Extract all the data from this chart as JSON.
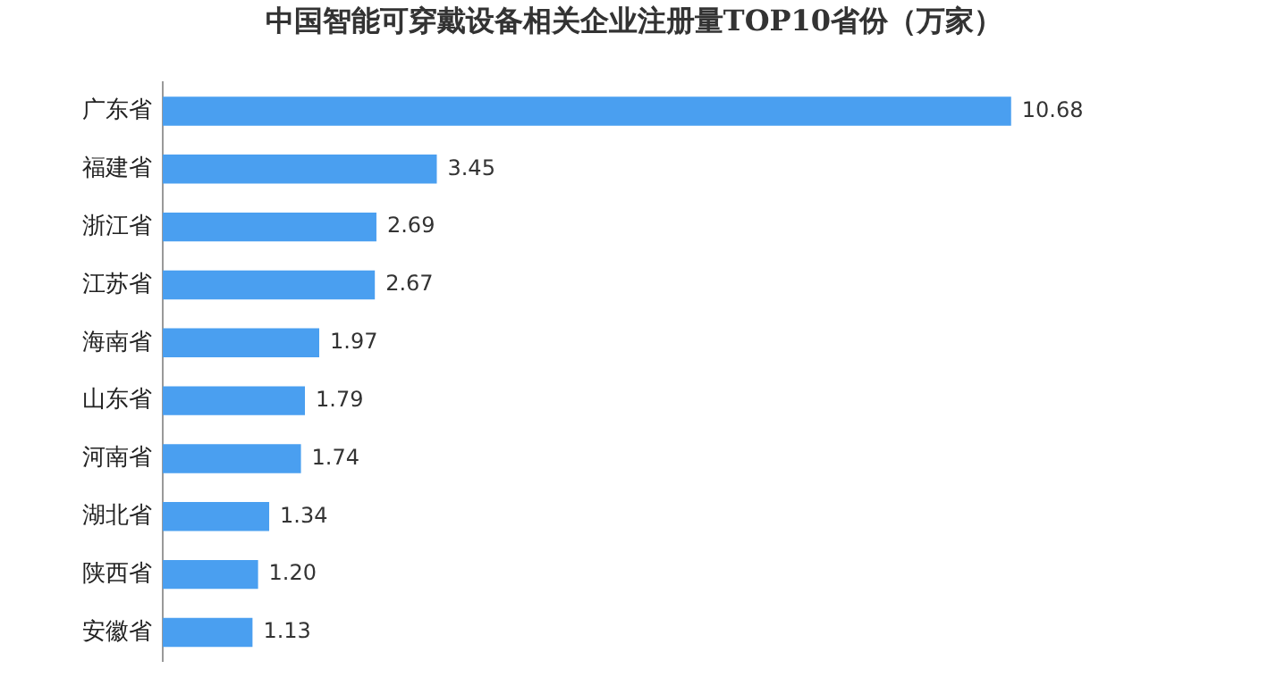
{
  "chart_data": {
    "type": "bar",
    "orientation": "horizontal",
    "title": "中国智能可穿戴设备相关企业注册量TOP10省份（万家）",
    "categories": [
      "广东省",
      "福建省",
      "浙江省",
      "江苏省",
      "海南省",
      "山东省",
      "河南省",
      "湖北省",
      "陕西省",
      "安徽省"
    ],
    "values": [
      10.68,
      3.45,
      2.69,
      2.67,
      1.97,
      1.79,
      1.74,
      1.34,
      1.2,
      1.13
    ],
    "value_labels": [
      "10.68",
      "3.45",
      "2.69",
      "2.67",
      "1.97",
      "1.79",
      "1.74",
      "1.34",
      "1.20",
      "1.13"
    ],
    "color": "#4a9ff0",
    "tick_labels": "y",
    "grid": false,
    "legend": false
  }
}
